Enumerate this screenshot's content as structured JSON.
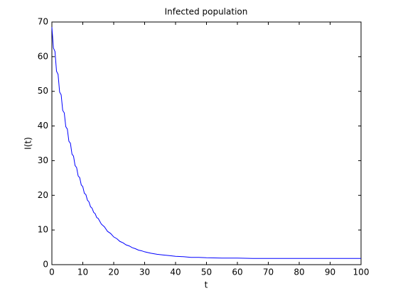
{
  "chart_data": {
    "type": "line",
    "title": "Infected population",
    "x_label": "t",
    "y_label": "I(t)",
    "x": [
      0,
      0.5,
      1,
      1.5,
      2,
      2.5,
      3,
      3.5,
      4,
      4.5,
      5,
      5.5,
      6,
      6.5,
      7,
      7.5,
      8,
      8.5,
      9,
      9.5,
      10,
      10.5,
      11,
      11.5,
      12,
      12.5,
      13,
      13.5,
      14,
      14.5,
      15,
      16,
      17,
      18,
      19,
      20,
      21,
      22,
      23,
      24,
      25,
      26,
      27,
      28,
      29,
      30,
      32,
      34,
      36,
      38,
      40,
      42.5,
      45,
      47.5,
      50,
      55,
      60,
      65,
      70,
      75,
      80,
      85,
      90,
      95,
      100
    ],
    "series": [
      {
        "color": "#0000ff",
        "values": [
          68.5,
          62.5,
          61.5,
          55.8,
          54.9,
          49.8,
          49.0,
          44.5,
          43.8,
          39.8,
          39.1,
          35.6,
          35.0,
          31.9,
          31.3,
          28.6,
          28.0,
          25.6,
          25.1,
          23.0,
          22.5,
          20.6,
          20.2,
          18.6,
          18.1,
          16.7,
          16.3,
          15.1,
          14.7,
          13.6,
          13.3,
          11.7,
          10.9,
          9.6,
          9.0,
          8.0,
          7.5,
          6.7,
          6.3,
          5.7,
          5.4,
          4.9,
          4.6,
          4.2,
          4.0,
          3.7,
          3.3,
          3.0,
          2.8,
          2.6,
          2.4,
          2.3,
          2.1,
          2.1,
          2.0,
          1.9,
          1.9,
          1.8,
          1.8,
          1.8,
          1.8,
          1.8,
          1.8,
          1.8,
          1.8
        ]
      }
    ],
    "xlim": [
      0,
      100
    ],
    "xticks": [
      0,
      10,
      20,
      30,
      40,
      50,
      60,
      70,
      80,
      90,
      100
    ],
    "ylim": [
      0,
      70
    ],
    "yticks": [
      0,
      10,
      20,
      30,
      40,
      50,
      60,
      70
    ]
  }
}
